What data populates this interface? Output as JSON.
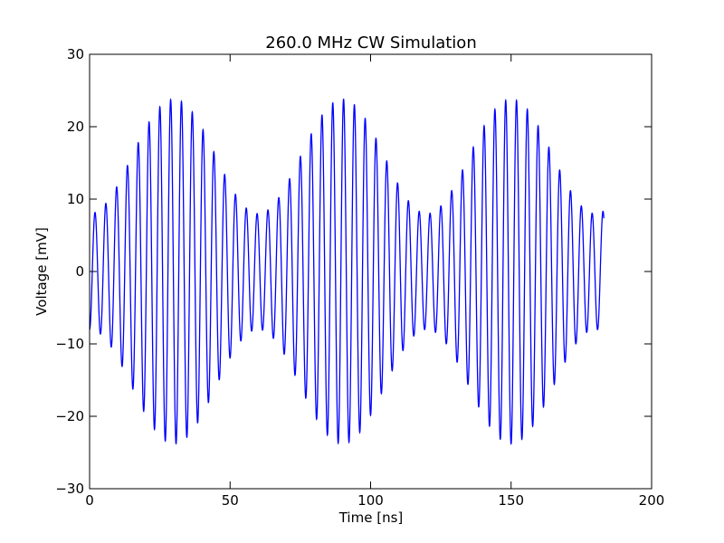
{
  "chart_data": {
    "type": "line",
    "title": "260.0 MHz CW Simulation",
    "xlabel": "Time [ns]",
    "ylabel": "Voltage [mV]",
    "xlim": [
      0,
      200
    ],
    "ylim": [
      -30,
      30
    ],
    "xticks": [
      0,
      50,
      100,
      150,
      200
    ],
    "yticks": [
      -30,
      -20,
      -10,
      0,
      10,
      20,
      30
    ],
    "grid": false,
    "series": [
      {
        "color": "#0000ff",
        "x_range": [
          0,
          183
        ],
        "carrier_frequency_mhz": 260.0,
        "amplitude_mv_min": 8,
        "amplitude_mv_max": 23.8,
        "amplitude_peak_times_ns": [
          30,
          90,
          150
        ],
        "start_value_mv": -8
      }
    ]
  }
}
